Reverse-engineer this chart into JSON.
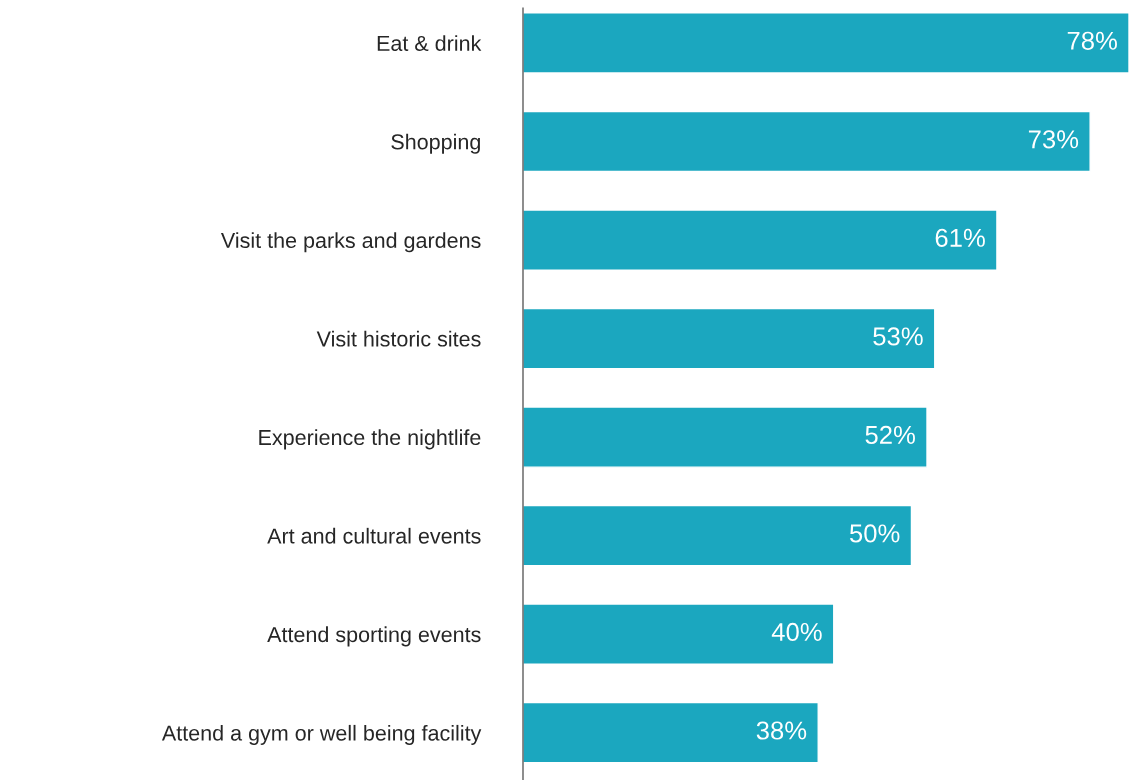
{
  "chart_data": {
    "type": "bar",
    "orientation": "horizontal",
    "categories": [
      "Eat & drink",
      "Shopping",
      "Visit the parks and gardens",
      "Visit historic sites",
      "Experience the nightlife",
      "Art and cultural events",
      "Attend sporting events",
      "Attend a gym or well being facility"
    ],
    "values": [
      78,
      73,
      61,
      53,
      52,
      50,
      40,
      38
    ],
    "value_labels": [
      "78%",
      "73%",
      "61%",
      "53%",
      "52%",
      "50%",
      "40%",
      "38%"
    ],
    "color": "#1ba7bf",
    "grid": false,
    "legend": false
  }
}
